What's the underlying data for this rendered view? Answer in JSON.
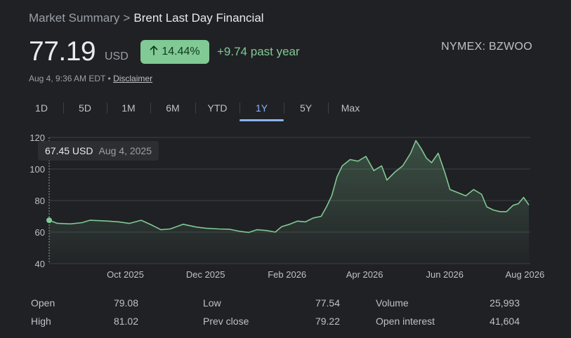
{
  "breadcrumb": {
    "parent": "Market Summary",
    "separator": ">",
    "current": "Brent Last Day Financial"
  },
  "quote": {
    "price": "77.19",
    "currency": "USD",
    "change_pct": "14.44%",
    "change_arrow_icon": "arrow-up-icon",
    "change_abs": "+9.74 past year",
    "ticker": "NYMEX: BZWOO",
    "timestamp": "Aug 4, 9:36 AM EDT",
    "timestamp_sep": "•",
    "disclaimer": "Disclaimer"
  },
  "ranges": [
    {
      "label": "1D"
    },
    {
      "label": "5D"
    },
    {
      "label": "1M"
    },
    {
      "label": "6M"
    },
    {
      "label": "YTD"
    },
    {
      "label": "1Y"
    },
    {
      "label": "5Y"
    },
    {
      "label": "Max"
    }
  ],
  "active_range": "1Y",
  "colors": {
    "positive": "#81c995",
    "accent": "#8ab4f8",
    "background": "#202124"
  },
  "tooltip": {
    "value": "67.45 USD",
    "date": "Aug 4, 2025"
  },
  "chart_data": {
    "type": "area",
    "xlabel": "",
    "ylabel": "",
    "ylim": [
      40,
      120
    ],
    "xlim": [
      "2025-08-04",
      "2026-08-04"
    ],
    "yticks": [
      "120",
      "100",
      "80",
      "60",
      "40"
    ],
    "xticks": [
      "Oct 2025",
      "Dec 2025",
      "Feb 2026",
      "Apr 2026",
      "Jun 2026",
      "Aug 2026"
    ],
    "grid": true,
    "series": [
      {
        "values": [
          [
            "2025-08-04",
            67.5
          ],
          [
            "2025-08-10",
            65.6
          ],
          [
            "2025-08-20",
            65.2
          ],
          [
            "2025-08-29",
            66.0
          ],
          [
            "2025-09-04",
            67.5
          ],
          [
            "2025-09-10",
            67.3
          ],
          [
            "2025-09-18",
            67.0
          ],
          [
            "2025-09-26",
            66.5
          ],
          [
            "2025-10-04",
            65.5
          ],
          [
            "2025-10-13",
            67.5
          ],
          [
            "2025-10-21",
            64.5
          ],
          [
            "2025-10-28",
            61.5
          ],
          [
            "2025-11-04",
            62.0
          ],
          [
            "2025-11-14",
            65.0
          ],
          [
            "2025-11-24",
            63.2
          ],
          [
            "2025-12-01",
            62.5
          ],
          [
            "2025-12-11",
            62.0
          ],
          [
            "2025-12-19",
            61.8
          ],
          [
            "2025-12-27",
            60.5
          ],
          [
            "2026-01-03",
            59.8
          ],
          [
            "2026-01-09",
            61.5
          ],
          [
            "2026-01-17",
            61.0
          ],
          [
            "2026-01-23",
            60.0
          ],
          [
            "2026-01-28",
            63.5
          ],
          [
            "2026-02-03",
            65.0
          ],
          [
            "2026-02-09",
            67.0
          ],
          [
            "2026-02-15",
            66.5
          ],
          [
            "2026-02-21",
            69.0
          ],
          [
            "2026-02-27",
            70.0
          ],
          [
            "2026-03-03",
            76.0
          ],
          [
            "2026-03-07",
            83.0
          ],
          [
            "2026-03-11",
            95.0
          ],
          [
            "2026-03-15",
            102.0
          ],
          [
            "2026-03-21",
            106.0
          ],
          [
            "2026-03-27",
            105.0
          ],
          [
            "2026-04-02",
            108.0
          ],
          [
            "2026-04-08",
            99.0
          ],
          [
            "2026-04-14",
            102.0
          ],
          [
            "2026-04-18",
            93.0
          ],
          [
            "2026-04-24",
            98.0
          ],
          [
            "2026-04-30",
            102.0
          ],
          [
            "2026-05-06",
            110.0
          ],
          [
            "2026-05-10",
            118.0
          ],
          [
            "2026-05-14",
            113.0
          ],
          [
            "2026-05-18",
            107.0
          ],
          [
            "2026-05-22",
            104.0
          ],
          [
            "2026-05-27",
            110.0
          ],
          [
            "2026-06-01",
            98.0
          ],
          [
            "2026-06-05",
            87.0
          ],
          [
            "2026-06-11",
            85.0
          ],
          [
            "2026-06-17",
            83.0
          ],
          [
            "2026-06-23",
            87.0
          ],
          [
            "2026-06-29",
            84.0
          ],
          [
            "2026-07-03",
            76.0
          ],
          [
            "2026-07-08",
            74.0
          ],
          [
            "2026-07-13",
            73.0
          ],
          [
            "2026-07-18",
            73.0
          ],
          [
            "2026-07-23",
            77.0
          ],
          [
            "2026-07-27",
            78.0
          ],
          [
            "2026-07-31",
            82.0
          ],
          [
            "2026-08-04",
            77.2
          ]
        ]
      }
    ]
  },
  "stats": {
    "columns": [
      [
        {
          "label": "Open",
          "value": "79.08"
        },
        {
          "label": "High",
          "value": "81.02"
        }
      ],
      [
        {
          "label": "Low",
          "value": "77.54"
        },
        {
          "label": "Prev close",
          "value": "79.22"
        }
      ],
      [
        {
          "label": "Volume",
          "value": "25,993"
        },
        {
          "label": "Open interest",
          "value": "41,604"
        }
      ]
    ]
  }
}
